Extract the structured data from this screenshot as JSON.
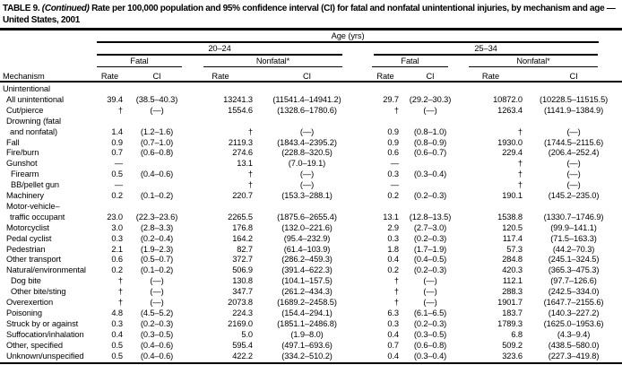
{
  "colors": {
    "text": "#000000",
    "rule": "#000000",
    "background": "#ffffff"
  },
  "title": {
    "prefix": "TABLE 9. ",
    "continued": "(Continued)",
    "text": " Rate per 100,000 population and 95% confidence interval (CI) for fatal and nonfatal unintentional injuries, by mechanism and age — United States, 2001"
  },
  "header": {
    "age_label": "Age (yrs)",
    "groups": [
      {
        "label": "20–24"
      },
      {
        "label": "25–34"
      }
    ],
    "sub": {
      "fatal": "Fatal",
      "nonfatal": "Nonfatal*"
    },
    "mechanism_label": "Mechanism",
    "rate_label": "Rate",
    "ci_label": "CI"
  },
  "section_label": "Unintentional",
  "rows": [
    {
      "label": "All unintentional",
      "indent": 1,
      "cells": [
        "39.4",
        "(38.5–40.3)",
        "13241.3",
        "(11541.4–14941.2)",
        "29.7",
        "(29.2–30.3)",
        "10872.0",
        "(10228.5–11515.5)"
      ]
    },
    {
      "label": "Cut/pierce",
      "indent": 1,
      "cells": [
        "†",
        "(—)",
        "1554.6",
        "(1328.6–1780.6)",
        "†",
        "(—)",
        "1263.4",
        "(1141.9–1384.9)"
      ]
    },
    {
      "label": "Drowning (fatal",
      "label2": "and nonfatal)",
      "indent": 1,
      "cells": [
        "1.4",
        "(1.2–1.6)",
        "†",
        "(—)",
        "0.9",
        "(0.8–1.0)",
        "†",
        "(—)"
      ]
    },
    {
      "label": "Fall",
      "indent": 1,
      "cells": [
        "0.9",
        "(0.7–1.0)",
        "2119.3",
        "(1843.4–2395.2)",
        "0.9",
        "(0.8–0.9)",
        "1930.0",
        "(1744.5–2115.6)"
      ]
    },
    {
      "label": "Fire/burn",
      "indent": 1,
      "cells": [
        "0.7",
        "(0.6–0.8)",
        "274.6",
        "(228.8–320.5)",
        "0.6",
        "(0.6–0.7)",
        "229.4",
        "(206.4–252.4)"
      ]
    },
    {
      "label": "Gunshot",
      "indent": 1,
      "cells": [
        "—",
        "",
        "13.1",
        "(7.0–19.1)",
        "—",
        "",
        "†",
        "(—)"
      ]
    },
    {
      "label": "Firearm",
      "indent": 2,
      "cells": [
        "0.5",
        "(0.4–0.6)",
        "†",
        "(—)",
        "0.3",
        "(0.3–0.4)",
        "†",
        "(—)"
      ]
    },
    {
      "label": "BB/pellet gun",
      "indent": 2,
      "cells": [
        "—",
        "",
        "†",
        "(—)",
        "—",
        "",
        "†",
        "(—)"
      ]
    },
    {
      "label": "Machinery",
      "indent": 1,
      "cells": [
        "0.2",
        "(0.1–0.2)",
        "220.7",
        "(153.3–288.1)",
        "0.2",
        "(0.2–0.3)",
        "190.1",
        "(145.2–235.0)"
      ]
    },
    {
      "label": "Motor-vehicle–",
      "label2": "traffic occupant",
      "indent": 1,
      "cells": [
        "23.0",
        "(22.3–23.6)",
        "2265.5",
        "(1875.6–2655.4)",
        "13.1",
        "(12.8–13.5)",
        "1538.8",
        "(1330.7–1746.9)"
      ]
    },
    {
      "label": "Motorcyclist",
      "indent": 1,
      "cells": [
        "3.0",
        "(2.8–3.3)",
        "176.8",
        "(132.0–221.6)",
        "2.9",
        "(2.7–3.0)",
        "120.5",
        "(99.9–141.1)"
      ]
    },
    {
      "label": "Pedal cyclist",
      "indent": 1,
      "cells": [
        "0.3",
        "(0.2–0.4)",
        "164.2",
        "(95.4–232.9)",
        "0.3",
        "(0.2–0.3)",
        "117.4",
        "(71.5–163.3)"
      ]
    },
    {
      "label": "Pedestrian",
      "indent": 1,
      "cells": [
        "2.1",
        "(1.9–2.3)",
        "82.7",
        "(61.4–103.9)",
        "1.8",
        "(1.7–1.9)",
        "57.3",
        "(44.2–70.3)"
      ]
    },
    {
      "label": "Other transport",
      "indent": 1,
      "cells": [
        "0.6",
        "(0.5–0.7)",
        "372.7",
        "(286.2–459.3)",
        "0.4",
        "(0.4–0.5)",
        "284.8",
        "(245.1–324.5)"
      ]
    },
    {
      "label": "Natural/environmental",
      "indent": 1,
      "cells": [
        "0.2",
        "(0.1–0.2)",
        "506.9",
        "(391.4–622.3)",
        "0.2",
        "(0.2–0.3)",
        "420.3",
        "(365.3–475.3)"
      ]
    },
    {
      "label": "Dog bite",
      "indent": 2,
      "cells": [
        "†",
        "(—)",
        "130.8",
        "(104.1–157.5)",
        "†",
        "(—)",
        "112.1",
        "(97.7–126.6)"
      ]
    },
    {
      "label": "Other bite/sting",
      "indent": 2,
      "cells": [
        "†",
        "(—)",
        "347.7",
        "(261.2–434.3)",
        "†",
        "(—)",
        "288.3",
        "(242.5–334.0)"
      ]
    },
    {
      "label": "Overexertion",
      "indent": 1,
      "cells": [
        "†",
        "(—)",
        "2073.8",
        "(1689.2–2458.5)",
        "†",
        "(—)",
        "1901.7",
        "(1647.7–2155.6)"
      ]
    },
    {
      "label": "Poisoning",
      "indent": 1,
      "cells": [
        "4.8",
        "(4.5–5.2)",
        "224.3",
        "(154.4–294.1)",
        "6.3",
        "(6.1–6.5)",
        "183.7",
        "(140.3–227.2)"
      ]
    },
    {
      "label": "Struck by or against",
      "indent": 1,
      "cells": [
        "0.3",
        "(0.2–0.3)",
        "2169.0",
        "(1851.1–2486.8)",
        "0.3",
        "(0.2–0.3)",
        "1789.3",
        "(1625.0–1953.6)"
      ]
    },
    {
      "label": "Suffocation/inhalation",
      "indent": 1,
      "cells": [
        "0.4",
        "(0.3–0.5)",
        "5.0",
        "(1.9–8.0)",
        "0.4",
        "(0.3–0.5)",
        "6.8",
        "(4.3–9.4)"
      ]
    },
    {
      "label": "Other, specified",
      "indent": 1,
      "cells": [
        "0.5",
        "(0.4–0.6)",
        "595.4",
        "(497.1–693.6)",
        "0.7",
        "(0.6–0.8)",
        "509.2",
        "(438.5–580.0)"
      ]
    },
    {
      "label": "Unknown/unspecified",
      "indent": 1,
      "cells": [
        "0.5",
        "(0.4–0.6)",
        "422.2",
        "(334.2–510.2)",
        "0.4",
        "(0.3–0.4)",
        "323.6",
        "(227.3–419.8)"
      ]
    }
  ]
}
